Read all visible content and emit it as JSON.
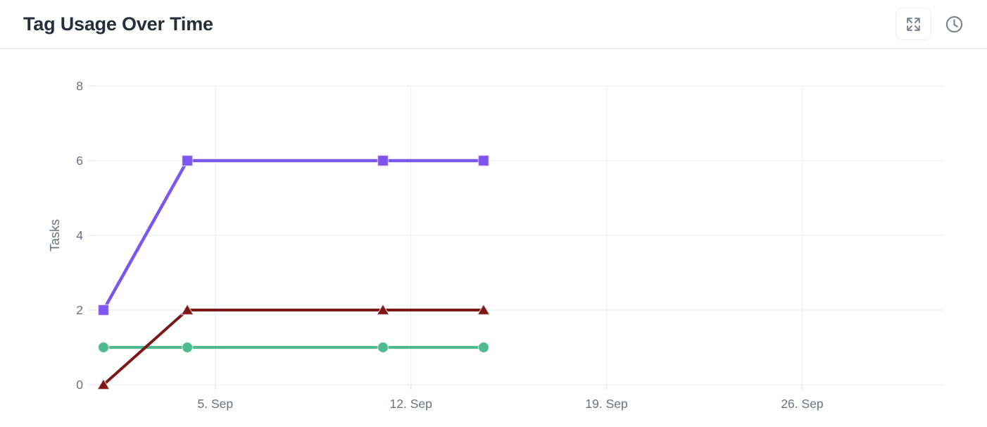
{
  "header": {
    "title": "Tag Usage Over Time",
    "icons": {
      "expand": "expand-arrows-icon",
      "time": "clock-icon"
    }
  },
  "colors": {
    "background": "#FFFFFF",
    "title_text": "#272D3B",
    "axis_text": "#6A7180",
    "gridline": "#F1F2F5",
    "tick": "#E6E8EC",
    "icon": "#7D838E",
    "button_border": "#ECEDF1",
    "header_border": "#ECEEF1",
    "series_violet": "#7B57EF",
    "series_dark_red": "#7E1717",
    "series_green": "#4FBA90"
  },
  "chart_data": {
    "type": "line",
    "title": "Tag Usage Over Time",
    "xlabel": "",
    "ylabel": "Tasks",
    "ylim": [
      0,
      8
    ],
    "yticks": [
      0,
      2,
      4,
      6,
      8
    ],
    "grid": true,
    "legend": false,
    "xticks": [
      {
        "label": "5. Sep",
        "day": 4
      },
      {
        "label": "12. Sep",
        "day": 11
      },
      {
        "label": "19. Sep",
        "day": 18
      },
      {
        "label": "26. Sep",
        "day": 25
      }
    ],
    "x_days_from_first_point": [
      0,
      3,
      10,
      13.6
    ],
    "series": [
      {
        "name": "violet",
        "color": "#7B57EF",
        "marker": "square",
        "line_width": 4.5,
        "values": [
          2,
          6,
          6,
          6
        ]
      },
      {
        "name": "green",
        "color": "#4FBA90",
        "marker": "circle",
        "line_width": 4.3,
        "values": [
          1,
          1,
          1,
          1
        ]
      },
      {
        "name": "dark_red",
        "color": "#7E1717",
        "marker": "triangle",
        "line_width": 4,
        "values": [
          0,
          2,
          2,
          2
        ]
      }
    ]
  }
}
